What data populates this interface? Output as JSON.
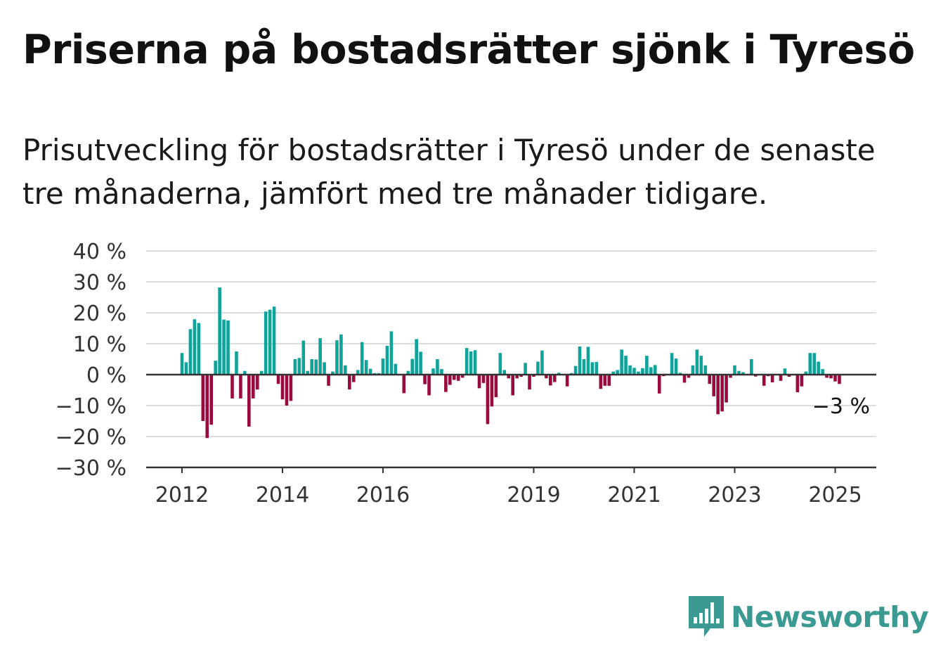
{
  "title": "Priserna på bostadsrätter sjönk i Tyresö",
  "subtitle": "Prisutveckling för bostadsrätter i Tyresö under de senaste tre månaderna, jämfört med tre månader tidigare.",
  "brand": {
    "name": "Newsworthy",
    "icon": "newsworthy-logo-icon"
  },
  "colors": {
    "positive": "#10a39a",
    "negative": "#990a3f",
    "grid": "#dddddd",
    "axis": "#333333",
    "brand": "#3a9a92"
  },
  "chart_data": {
    "type": "bar",
    "x_start": "2012-01",
    "x_step": "month",
    "y_ticks": [
      40,
      30,
      20,
      10,
      0,
      -10,
      -20,
      -30
    ],
    "y_tick_labels": [
      "40 %",
      "30 %",
      "20 %",
      "10 %",
      "0 %",
      "−10 %",
      "−20 %",
      "−30 %"
    ],
    "ylim": [
      -30,
      40
    ],
    "x_ticks": [
      {
        "label": "2012",
        "date": "2012-01"
      },
      {
        "label": "2014",
        "date": "2014-01"
      },
      {
        "label": "2016",
        "date": "2016-01"
      },
      {
        "label": "2019",
        "date": "2019-01"
      },
      {
        "label": "2021",
        "date": "2021-01"
      },
      {
        "label": "2023",
        "date": "2023-01"
      },
      {
        "label": "2025",
        "date": "2025-01"
      }
    ],
    "last_value_label": "−3 %",
    "grid": true,
    "values": [
      7,
      4,
      14.7,
      17.9,
      16.7,
      -15,
      -20.5,
      -16.2,
      4.5,
      28.2,
      17.8,
      17.5,
      -7.7,
      7.5,
      -7.7,
      1.2,
      -16.8,
      -7.7,
      -4.8,
      1.2,
      20.4,
      21,
      22,
      -3,
      -8,
      -10,
      -8.5,
      5,
      5.4,
      11,
      1.2,
      5,
      4.9,
      11.8,
      4,
      -3.6,
      1,
      11.1,
      13,
      3,
      -4.8,
      -2.4,
      1.5,
      10.5,
      4.7,
      1.9,
      0.5,
      0.5,
      5.2,
      9.3,
      14,
      3.5,
      0,
      -6,
      1.2,
      5.1,
      11.5,
      7.4,
      -3.1,
      -6.7,
      2,
      5,
      1.8,
      -5.6,
      -3.3,
      -1.7,
      -2,
      -1,
      8.6,
      7.5,
      7.9,
      -4.4,
      -2.7,
      -16,
      -10.3,
      -7.3,
      7,
      1.5,
      -1.2,
      -6.7,
      -1.2,
      -0.7,
      3.8,
      -4.8,
      -0.7,
      4.2,
      7.8,
      -1.2,
      -3.5,
      -2.4,
      0.6,
      0,
      -3.8,
      0.5,
      2.8,
      9.1,
      5,
      9,
      4,
      4.1,
      -4.6,
      -3.6,
      -3.6,
      1,
      1.5,
      8.1,
      6.1,
      3,
      2.2,
      1,
      2.1,
      6.1,
      2.4,
      3.1,
      -6.1,
      -0.5,
      0,
      7,
      5.2,
      0.6,
      -2.6,
      -1,
      3,
      8.1,
      6.1,
      3,
      -3,
      -7,
      -12.8,
      -11.9,
      -9,
      -1,
      3,
      1.2,
      0.8,
      0,
      5,
      -0.6,
      0,
      -3.6,
      -0.5,
      -2.5,
      0,
      -2,
      2,
      -0.7,
      0,
      -5.7,
      -3.8,
      1,
      7,
      7,
      4.2,
      1.8,
      -1,
      -1.2,
      -2.2,
      -3
    ]
  }
}
